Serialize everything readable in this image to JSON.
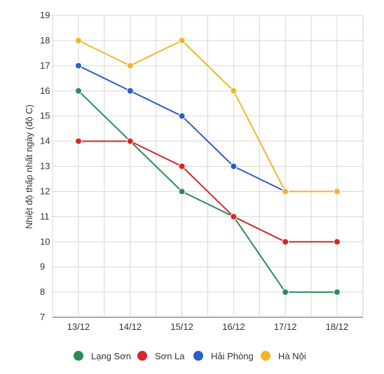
{
  "chart_data": {
    "type": "line",
    "title": "",
    "xlabel": "",
    "ylabel": "Nhiệt độ thấp nhất ngày (độ C)",
    "categories": [
      "13/12",
      "14/12",
      "15/12",
      "16/12",
      "17/12",
      "18/12"
    ],
    "ylim": [
      7,
      19
    ],
    "yticks": [
      7,
      8,
      9,
      10,
      11,
      12,
      13,
      14,
      15,
      16,
      17,
      18,
      19
    ],
    "grid": true,
    "legend_position": "bottom",
    "series": [
      {
        "name": "Lạng Sơn",
        "color": "#2e8b57",
        "values": [
          16,
          14,
          12,
          11,
          8,
          8
        ]
      },
      {
        "name": "Sơn La",
        "color": "#d62728",
        "values": [
          14,
          14,
          13,
          11,
          10,
          10
        ]
      },
      {
        "name": "Hải Phòng",
        "color": "#2a5fc4",
        "values": [
          17,
          16,
          15,
          13,
          12,
          null
        ]
      },
      {
        "name": "Hà Nội",
        "color": "#f0b52a",
        "values": [
          18,
          17,
          18,
          16,
          12,
          12
        ]
      }
    ]
  }
}
